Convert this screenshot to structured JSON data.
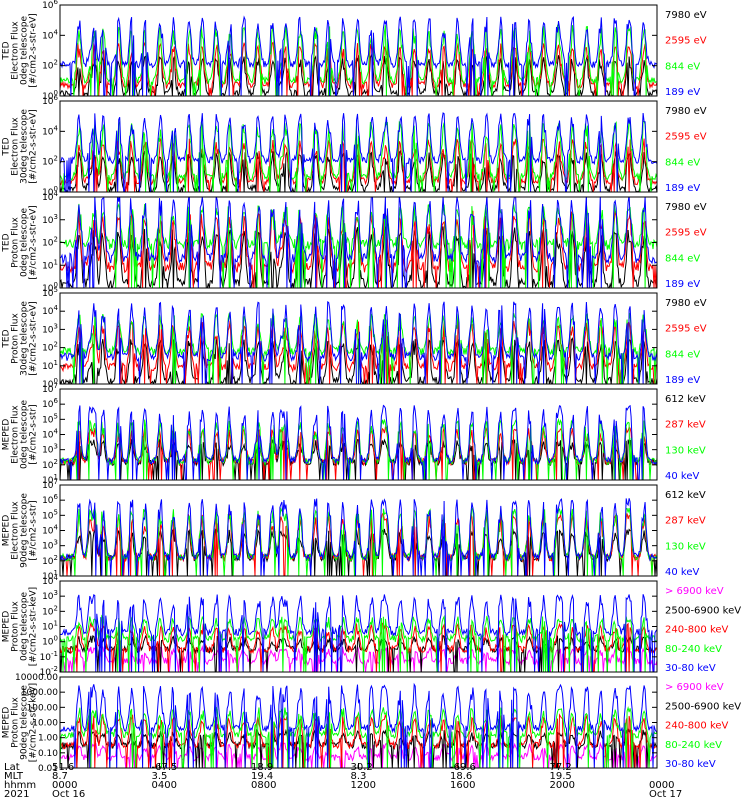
{
  "colors": {
    "black": "#000000",
    "red": "#ff0000",
    "green": "#00ff00",
    "blue": "#0000ff",
    "magenta": "#ff00ff"
  },
  "chart_data": [
    {
      "type": "line",
      "ylabel": [
        "TED",
        "Electron Flux",
        "0deg telescope",
        "[#/cm2-s-str-eV]"
      ],
      "yscale": "log",
      "ylim": [
        1,
        1000000.0
      ],
      "yticks": [
        {
          "v": 1,
          "t": "10^0"
        },
        {
          "v": 100,
          "t": "10^2"
        },
        {
          "v": 10000,
          "t": "10^4"
        },
        {
          "v": 1000000,
          "t": "10^6"
        }
      ],
      "series": [
        {
          "name": "7980 eV",
          "color": "#000000",
          "base": 1.5,
          "peak": 300
        },
        {
          "name": "2595 eV",
          "color": "#ff0000",
          "base": 5,
          "peak": 2000
        },
        {
          "name": "844 eV",
          "color": "#00ff00",
          "base": 10,
          "peak": 30000
        },
        {
          "name": "189 eV",
          "color": "#0000ff",
          "base": 120,
          "peak": 100000
        }
      ]
    },
    {
      "type": "line",
      "ylabel": [
        "TED",
        "Electron Flux",
        "30deg telescope",
        "[#/cm2-s-str-eV]"
      ],
      "yscale": "log",
      "ylim": [
        1,
        1000000.0
      ],
      "yticks": [
        {
          "v": 1,
          "t": "10^0"
        },
        {
          "v": 100,
          "t": "10^2"
        },
        {
          "v": 10000,
          "t": "10^4"
        },
        {
          "v": 1000000,
          "t": "10^6"
        }
      ],
      "series": [
        {
          "name": "7980 eV",
          "color": "#000000",
          "base": 1.5,
          "peak": 300
        },
        {
          "name": "2595 eV",
          "color": "#ff0000",
          "base": 5,
          "peak": 2000
        },
        {
          "name": "844 eV",
          "color": "#00ff00",
          "base": 10,
          "peak": 30000
        },
        {
          "name": "189 eV",
          "color": "#0000ff",
          "base": 120,
          "peak": 100000
        }
      ]
    },
    {
      "type": "line",
      "ylabel": [
        "TED",
        "Proton Flux",
        "0deg telescope",
        "[#/cm2-s-str-eV]"
      ],
      "yscale": "log",
      "ylim": [
        1,
        10000
      ],
      "yticks": [
        {
          "v": 1,
          "t": "10^0"
        },
        {
          "v": 10,
          "t": "10^1"
        },
        {
          "v": 100,
          "t": "10^2"
        },
        {
          "v": 1000,
          "t": "10^3"
        },
        {
          "v": 10000,
          "t": "10^4"
        }
      ],
      "series": [
        {
          "name": "7980 eV",
          "color": "#000000",
          "base": 1.5,
          "peak": 300
        },
        {
          "name": "2595 eV",
          "color": "#ff0000",
          "base": 8,
          "peak": 1500
        },
        {
          "name": "844 eV",
          "color": "#00ff00",
          "base": 80,
          "peak": 3000
        },
        {
          "name": "189 eV",
          "color": "#0000ff",
          "base": 20,
          "peak": 8000
        }
      ]
    },
    {
      "type": "line",
      "ylabel": [
        "TED",
        "Proton Flux",
        "30deg telescope",
        "[#/cm2-s-str-eV]"
      ],
      "yscale": "log",
      "ylim": [
        1,
        100000.0
      ],
      "yticks": [
        {
          "v": 1,
          "t": "10^0"
        },
        {
          "v": 10,
          "t": "10^1"
        },
        {
          "v": 100,
          "t": "10^2"
        },
        {
          "v": 1000,
          "t": "10^3"
        },
        {
          "v": 10000,
          "t": "10^4"
        },
        {
          "v": 100000,
          "t": "10^5"
        }
      ],
      "series": [
        {
          "name": "7980 eV",
          "color": "#000000",
          "base": 1.5,
          "peak": 200
        },
        {
          "name": "2595 eV",
          "color": "#ff0000",
          "base": 8,
          "peak": 2000
        },
        {
          "name": "844 eV",
          "color": "#00ff00",
          "base": 60,
          "peak": 5000
        },
        {
          "name": "189 eV",
          "color": "#0000ff",
          "base": 30,
          "peak": 20000
        }
      ]
    },
    {
      "type": "line",
      "ylabel": [
        "MEPED",
        "Electron Flux",
        "0deg telescope",
        "[#/cm2-s-str]"
      ],
      "yscale": "log",
      "ylim": [
        10,
        10000000.0
      ],
      "yticks": [
        {
          "v": 10,
          "t": "10^1"
        },
        {
          "v": 100,
          "t": "10^2"
        },
        {
          "v": 1000,
          "t": "10^3"
        },
        {
          "v": 10000,
          "t": "10^4"
        },
        {
          "v": 100000,
          "t": "10^5"
        },
        {
          "v": 1000000,
          "t": "10^6"
        },
        {
          "v": 10000000,
          "t": "10^7"
        }
      ],
      "series": [
        {
          "name": "612 keV",
          "color": "#000000",
          "base": 150,
          "peak": 3000
        },
        {
          "name": "287 keV",
          "color": "#ff0000",
          "base": 160,
          "peak": 20000
        },
        {
          "name": "130 keV",
          "color": "#00ff00",
          "base": 170,
          "peak": 60000
        },
        {
          "name": "40 keV",
          "color": "#0000ff",
          "base": 180,
          "peak": 500000
        }
      ]
    },
    {
      "type": "line",
      "ylabel": [
        "MEPED",
        "Electron Flux",
        "90deg telescope",
        "[#/cm2-s-str]"
      ],
      "yscale": "log",
      "ylim": [
        10,
        10000000.0
      ],
      "yticks": [
        {
          "v": 10,
          "t": "10^1"
        },
        {
          "v": 100,
          "t": "10^2"
        },
        {
          "v": 1000,
          "t": "10^3"
        },
        {
          "v": 10000,
          "t": "10^4"
        },
        {
          "v": 100000,
          "t": "10^5"
        },
        {
          "v": 1000000,
          "t": "10^6"
        },
        {
          "v": 10000000,
          "t": "10^7"
        }
      ],
      "series": [
        {
          "name": "612 keV",
          "color": "#000000",
          "base": 150,
          "peak": 8000
        },
        {
          "name": "287 keV",
          "color": "#ff0000",
          "base": 160,
          "peak": 80000
        },
        {
          "name": "130 keV",
          "color": "#00ff00",
          "base": 170,
          "peak": 200000
        },
        {
          "name": "40 keV",
          "color": "#0000ff",
          "base": 180,
          "peak": 800000
        }
      ]
    },
    {
      "type": "line",
      "ylabel": [
        "MEPED",
        "Proton Flux",
        "0deg telescope",
        "[#/cm2-s-str-keV]"
      ],
      "yscale": "log",
      "ylim": [
        0.01,
        10000
      ],
      "yticks": [
        {
          "v": 0.01,
          "t": "10^-2"
        },
        {
          "v": 0.1,
          "t": "10^-1"
        },
        {
          "v": 1,
          "t": "10^0"
        },
        {
          "v": 10,
          "t": "10^1"
        },
        {
          "v": 100,
          "t": "10^2"
        },
        {
          "v": 1000,
          "t": "10^3"
        },
        {
          "v": 10000,
          "t": "10^4"
        }
      ],
      "series": [
        {
          "name": "> 6900 keV",
          "color": "#ff00ff",
          "base": 0.05,
          "peak": 0.3
        },
        {
          "name": "2500-6900 keV",
          "color": "#000000",
          "base": 0.3,
          "peak": 1.5
        },
        {
          "name": "240-800 keV",
          "color": "#ff0000",
          "base": 0.3,
          "peak": 10
        },
        {
          "name": "80-240 keV",
          "color": "#00ff00",
          "base": 1.5,
          "peak": 30
        },
        {
          "name": "30-80 keV",
          "color": "#0000ff",
          "base": 4,
          "peak": 800
        }
      ]
    },
    {
      "type": "line",
      "ylabel": [
        "MEPED",
        "Proton Flux",
        "90deg telescope",
        "[#/cm2-s-str-keV]"
      ],
      "yscale": "log",
      "ylim": [
        0.01,
        10000
      ],
      "yticks": [
        {
          "v": 0.01,
          "t": "0.01"
        },
        {
          "v": 0.1,
          "t": "0.10"
        },
        {
          "v": 1,
          "t": "1.00"
        },
        {
          "v": 10,
          "t": "10.00"
        },
        {
          "v": 100,
          "t": "100.00"
        },
        {
          "v": 1000,
          "t": "1000.00"
        },
        {
          "v": 10000,
          "t": "10000.00"
        }
      ],
      "series": [
        {
          "name": "> 6900 keV",
          "color": "#ff00ff",
          "base": 0.05,
          "peak": 0.3
        },
        {
          "name": "2500-6900 keV",
          "color": "#000000",
          "base": 0.3,
          "peak": 2
        },
        {
          "name": "240-800 keV",
          "color": "#ff0000",
          "base": 0.3,
          "peak": 20
        },
        {
          "name": "80-240 keV",
          "color": "#00ff00",
          "base": 1.5,
          "peak": 60
        },
        {
          "name": "30-80 keV",
          "color": "#0000ff",
          "base": 4,
          "peak": 2000
        }
      ]
    }
  ],
  "xaxis": {
    "row_labels": [
      "Lat",
      "MLT",
      "hhmm",
      "2021"
    ],
    "ticks": [
      {
        "lat": "51.6",
        "mlt": "8.7",
        "hhmm": "0000",
        "date": "Oct 16"
      },
      {
        "lat": "-67.5",
        "mlt": "3.5",
        "hhmm": "0400",
        "date": ""
      },
      {
        "lat": "18.9",
        "mlt": "19.4",
        "hhmm": "0800",
        "date": ""
      },
      {
        "lat": "30.2",
        "mlt": "8.3",
        "hhmm": "1200",
        "date": ""
      },
      {
        "lat": "-69.6",
        "mlt": "18.6",
        "hhmm": "1600",
        "date": ""
      },
      {
        "lat": "77.2",
        "mlt": "19.5",
        "hhmm": "2000",
        "date": ""
      },
      {
        "lat": "",
        "mlt": "",
        "hhmm": "0000",
        "date": "Oct 17"
      }
    ]
  },
  "events": {
    "orbit_passes": [
      0.032,
      0.058,
      0.072,
      0.098,
      0.12,
      0.142,
      0.168,
      0.19,
      0.216,
      0.238,
      0.262,
      0.284,
      0.308,
      0.332,
      0.356,
      0.378,
      0.402,
      0.428,
      0.45,
      0.474,
      0.498,
      0.522,
      0.546,
      0.57,
      0.594,
      0.618,
      0.642,
      0.666,
      0.69,
      0.714,
      0.738,
      0.762,
      0.786,
      0.81,
      0.834,
      0.858,
      0.882,
      0.906,
      0.93,
      0.954,
      0.978
    ],
    "strong_events": [
      0.05,
      0.37,
      0.54,
      0.76,
      0.84,
      0.95
    ]
  }
}
